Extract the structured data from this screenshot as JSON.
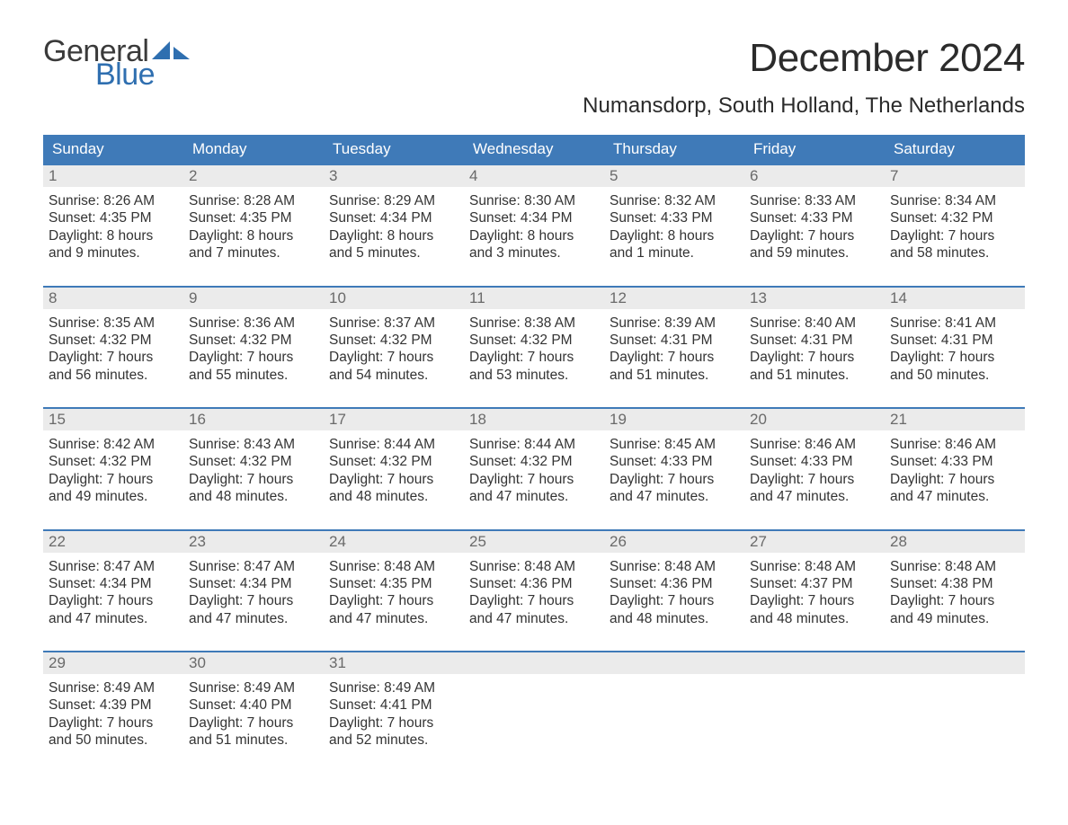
{
  "brand": {
    "general_text": "General",
    "blue_text": "Blue",
    "sail_color": "#2f6fb0",
    "general_color": "#3a3a3a",
    "blue_color": "#2f6fb0"
  },
  "header": {
    "month_title": "December 2024",
    "location": "Numansdorp, South Holland, The Netherlands"
  },
  "colors": {
    "header_bg": "#3f7ab8",
    "header_text": "#ffffff",
    "row_border": "#3f7ab8",
    "daynum_bg": "#ebebeb",
    "daynum_text": "#6a6a6a",
    "body_text": "#333333",
    "page_bg": "#ffffff"
  },
  "weekdays": [
    "Sunday",
    "Monday",
    "Tuesday",
    "Wednesday",
    "Thursday",
    "Friday",
    "Saturday"
  ],
  "weeks": [
    {
      "days": [
        {
          "num": "1",
          "sunrise": "Sunrise: 8:26 AM",
          "sunset": "Sunset: 4:35 PM",
          "dl1": "Daylight: 8 hours",
          "dl2": "and 9 minutes."
        },
        {
          "num": "2",
          "sunrise": "Sunrise: 8:28 AM",
          "sunset": "Sunset: 4:35 PM",
          "dl1": "Daylight: 8 hours",
          "dl2": "and 7 minutes."
        },
        {
          "num": "3",
          "sunrise": "Sunrise: 8:29 AM",
          "sunset": "Sunset: 4:34 PM",
          "dl1": "Daylight: 8 hours",
          "dl2": "and 5 minutes."
        },
        {
          "num": "4",
          "sunrise": "Sunrise: 8:30 AM",
          "sunset": "Sunset: 4:34 PM",
          "dl1": "Daylight: 8 hours",
          "dl2": "and 3 minutes."
        },
        {
          "num": "5",
          "sunrise": "Sunrise: 8:32 AM",
          "sunset": "Sunset: 4:33 PM",
          "dl1": "Daylight: 8 hours",
          "dl2": "and 1 minute."
        },
        {
          "num": "6",
          "sunrise": "Sunrise: 8:33 AM",
          "sunset": "Sunset: 4:33 PM",
          "dl1": "Daylight: 7 hours",
          "dl2": "and 59 minutes."
        },
        {
          "num": "7",
          "sunrise": "Sunrise: 8:34 AM",
          "sunset": "Sunset: 4:32 PM",
          "dl1": "Daylight: 7 hours",
          "dl2": "and 58 minutes."
        }
      ]
    },
    {
      "days": [
        {
          "num": "8",
          "sunrise": "Sunrise: 8:35 AM",
          "sunset": "Sunset: 4:32 PM",
          "dl1": "Daylight: 7 hours",
          "dl2": "and 56 minutes."
        },
        {
          "num": "9",
          "sunrise": "Sunrise: 8:36 AM",
          "sunset": "Sunset: 4:32 PM",
          "dl1": "Daylight: 7 hours",
          "dl2": "and 55 minutes."
        },
        {
          "num": "10",
          "sunrise": "Sunrise: 8:37 AM",
          "sunset": "Sunset: 4:32 PM",
          "dl1": "Daylight: 7 hours",
          "dl2": "and 54 minutes."
        },
        {
          "num": "11",
          "sunrise": "Sunrise: 8:38 AM",
          "sunset": "Sunset: 4:32 PM",
          "dl1": "Daylight: 7 hours",
          "dl2": "and 53 minutes."
        },
        {
          "num": "12",
          "sunrise": "Sunrise: 8:39 AM",
          "sunset": "Sunset: 4:31 PM",
          "dl1": "Daylight: 7 hours",
          "dl2": "and 51 minutes."
        },
        {
          "num": "13",
          "sunrise": "Sunrise: 8:40 AM",
          "sunset": "Sunset: 4:31 PM",
          "dl1": "Daylight: 7 hours",
          "dl2": "and 51 minutes."
        },
        {
          "num": "14",
          "sunrise": "Sunrise: 8:41 AM",
          "sunset": "Sunset: 4:31 PM",
          "dl1": "Daylight: 7 hours",
          "dl2": "and 50 minutes."
        }
      ]
    },
    {
      "days": [
        {
          "num": "15",
          "sunrise": "Sunrise: 8:42 AM",
          "sunset": "Sunset: 4:32 PM",
          "dl1": "Daylight: 7 hours",
          "dl2": "and 49 minutes."
        },
        {
          "num": "16",
          "sunrise": "Sunrise: 8:43 AM",
          "sunset": "Sunset: 4:32 PM",
          "dl1": "Daylight: 7 hours",
          "dl2": "and 48 minutes."
        },
        {
          "num": "17",
          "sunrise": "Sunrise: 8:44 AM",
          "sunset": "Sunset: 4:32 PM",
          "dl1": "Daylight: 7 hours",
          "dl2": "and 48 minutes."
        },
        {
          "num": "18",
          "sunrise": "Sunrise: 8:44 AM",
          "sunset": "Sunset: 4:32 PM",
          "dl1": "Daylight: 7 hours",
          "dl2": "and 47 minutes."
        },
        {
          "num": "19",
          "sunrise": "Sunrise: 8:45 AM",
          "sunset": "Sunset: 4:33 PM",
          "dl1": "Daylight: 7 hours",
          "dl2": "and 47 minutes."
        },
        {
          "num": "20",
          "sunrise": "Sunrise: 8:46 AM",
          "sunset": "Sunset: 4:33 PM",
          "dl1": "Daylight: 7 hours",
          "dl2": "and 47 minutes."
        },
        {
          "num": "21",
          "sunrise": "Sunrise: 8:46 AM",
          "sunset": "Sunset: 4:33 PM",
          "dl1": "Daylight: 7 hours",
          "dl2": "and 47 minutes."
        }
      ]
    },
    {
      "days": [
        {
          "num": "22",
          "sunrise": "Sunrise: 8:47 AM",
          "sunset": "Sunset: 4:34 PM",
          "dl1": "Daylight: 7 hours",
          "dl2": "and 47 minutes."
        },
        {
          "num": "23",
          "sunrise": "Sunrise: 8:47 AM",
          "sunset": "Sunset: 4:34 PM",
          "dl1": "Daylight: 7 hours",
          "dl2": "and 47 minutes."
        },
        {
          "num": "24",
          "sunrise": "Sunrise: 8:48 AM",
          "sunset": "Sunset: 4:35 PM",
          "dl1": "Daylight: 7 hours",
          "dl2": "and 47 minutes."
        },
        {
          "num": "25",
          "sunrise": "Sunrise: 8:48 AM",
          "sunset": "Sunset: 4:36 PM",
          "dl1": "Daylight: 7 hours",
          "dl2": "and 47 minutes."
        },
        {
          "num": "26",
          "sunrise": "Sunrise: 8:48 AM",
          "sunset": "Sunset: 4:36 PM",
          "dl1": "Daylight: 7 hours",
          "dl2": "and 48 minutes."
        },
        {
          "num": "27",
          "sunrise": "Sunrise: 8:48 AM",
          "sunset": "Sunset: 4:37 PM",
          "dl1": "Daylight: 7 hours",
          "dl2": "and 48 minutes."
        },
        {
          "num": "28",
          "sunrise": "Sunrise: 8:48 AM",
          "sunset": "Sunset: 4:38 PM",
          "dl1": "Daylight: 7 hours",
          "dl2": "and 49 minutes."
        }
      ]
    },
    {
      "days": [
        {
          "num": "29",
          "sunrise": "Sunrise: 8:49 AM",
          "sunset": "Sunset: 4:39 PM",
          "dl1": "Daylight: 7 hours",
          "dl2": "and 50 minutes."
        },
        {
          "num": "30",
          "sunrise": "Sunrise: 8:49 AM",
          "sunset": "Sunset: 4:40 PM",
          "dl1": "Daylight: 7 hours",
          "dl2": "and 51 minutes."
        },
        {
          "num": "31",
          "sunrise": "Sunrise: 8:49 AM",
          "sunset": "Sunset: 4:41 PM",
          "dl1": "Daylight: 7 hours",
          "dl2": "and 52 minutes."
        },
        null,
        null,
        null,
        null
      ]
    }
  ]
}
